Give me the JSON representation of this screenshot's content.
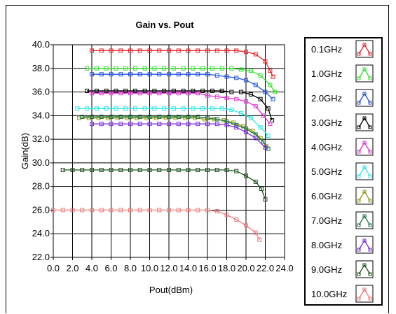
{
  "chart_data": {
    "type": "line",
    "title": "Gain vs. Pout",
    "xlabel": "Pout(dBm)",
    "ylabel": "Gain(dB)",
    "xlim": [
      0.0,
      24.0
    ],
    "ylim": [
      22.0,
      40.0
    ],
    "x_ticks": [
      "0.0",
      "2.0",
      "4.0",
      "6.0",
      "8.0",
      "10.0",
      "12.0",
      "14.0",
      "16.0",
      "18.0",
      "20.0",
      "22.0",
      "24.0"
    ],
    "y_ticks": [
      "22.0",
      "24.0",
      "26.0",
      "28.0",
      "30.0",
      "32.0",
      "34.0",
      "36.0",
      "38.0",
      "40.0"
    ],
    "grid": true,
    "legend_position": "right",
    "series": [
      {
        "name": "0.1GHz",
        "color": "#e8232a",
        "points": [
          [
            4.0,
            39.5
          ],
          [
            5.0,
            39.5
          ],
          [
            6.0,
            39.5
          ],
          [
            7.0,
            39.5
          ],
          [
            8.0,
            39.5
          ],
          [
            9.0,
            39.5
          ],
          [
            10.0,
            39.5
          ],
          [
            11.0,
            39.5
          ],
          [
            12.0,
            39.5
          ],
          [
            13.0,
            39.5
          ],
          [
            14.0,
            39.5
          ],
          [
            15.0,
            39.5
          ],
          [
            16.0,
            39.5
          ],
          [
            17.0,
            39.5
          ],
          [
            18.0,
            39.5
          ],
          [
            19.0,
            39.5
          ],
          [
            20.0,
            39.4
          ],
          [
            21.0,
            39.2
          ],
          [
            22.0,
            38.6
          ],
          [
            22.5,
            37.8
          ],
          [
            22.8,
            37.3
          ]
        ]
      },
      {
        "name": "1.0GHz",
        "color": "#35e02e",
        "points": [
          [
            3.5,
            38.0
          ],
          [
            4.5,
            38.0
          ],
          [
            5.5,
            38.0
          ],
          [
            6.5,
            38.0
          ],
          [
            7.5,
            38.0
          ],
          [
            8.5,
            38.0
          ],
          [
            9.5,
            38.0
          ],
          [
            10.5,
            38.0
          ],
          [
            11.5,
            38.0
          ],
          [
            12.5,
            38.0
          ],
          [
            13.5,
            38.0
          ],
          [
            14.5,
            38.0
          ],
          [
            15.5,
            38.0
          ],
          [
            16.5,
            38.0
          ],
          [
            17.5,
            38.0
          ],
          [
            18.5,
            38.0
          ],
          [
            19.5,
            37.9
          ],
          [
            20.5,
            37.8
          ],
          [
            21.5,
            37.4
          ],
          [
            22.5,
            36.6
          ],
          [
            23.0,
            36.0
          ]
        ]
      },
      {
        "name": "2.0GHz",
        "color": "#2352e0",
        "points": [
          [
            4.0,
            37.5
          ],
          [
            5.0,
            37.5
          ],
          [
            6.0,
            37.5
          ],
          [
            7.0,
            37.5
          ],
          [
            8.0,
            37.5
          ],
          [
            9.0,
            37.5
          ],
          [
            10.0,
            37.5
          ],
          [
            11.0,
            37.5
          ],
          [
            12.0,
            37.5
          ],
          [
            13.0,
            37.5
          ],
          [
            14.0,
            37.5
          ],
          [
            15.0,
            37.5
          ],
          [
            16.0,
            37.5
          ],
          [
            17.0,
            37.4
          ],
          [
            18.0,
            37.3
          ],
          [
            19.0,
            37.2
          ],
          [
            20.0,
            37.0
          ],
          [
            21.0,
            36.6
          ],
          [
            22.0,
            36.0
          ],
          [
            22.8,
            35.4
          ]
        ]
      },
      {
        "name": "3.0GHz",
        "color": "#000000",
        "points": [
          [
            3.5,
            36.1
          ],
          [
            4.5,
            36.1
          ],
          [
            5.5,
            36.1
          ],
          [
            6.5,
            36.1
          ],
          [
            7.5,
            36.1
          ],
          [
            8.5,
            36.1
          ],
          [
            9.5,
            36.1
          ],
          [
            10.5,
            36.1
          ],
          [
            11.5,
            36.1
          ],
          [
            12.5,
            36.1
          ],
          [
            13.5,
            36.1
          ],
          [
            14.5,
            36.1
          ],
          [
            15.5,
            36.1
          ],
          [
            16.5,
            36.1
          ],
          [
            17.5,
            36.1
          ],
          [
            18.5,
            36.0
          ],
          [
            19.5,
            36.0
          ],
          [
            20.5,
            35.8
          ],
          [
            21.5,
            35.4
          ],
          [
            22.3,
            34.6
          ],
          [
            22.7,
            33.6
          ]
        ]
      },
      {
        "name": "4.0GHz",
        "color": "#e035d8",
        "points": [
          [
            4.0,
            35.9
          ],
          [
            5.0,
            35.9
          ],
          [
            6.0,
            35.9
          ],
          [
            7.0,
            35.9
          ],
          [
            8.0,
            35.9
          ],
          [
            9.0,
            35.9
          ],
          [
            10.0,
            35.9
          ],
          [
            11.0,
            35.9
          ],
          [
            12.0,
            35.9
          ],
          [
            13.0,
            35.9
          ],
          [
            14.0,
            35.9
          ],
          [
            15.0,
            35.9
          ],
          [
            16.0,
            35.7
          ],
          [
            17.0,
            35.6
          ],
          [
            18.0,
            35.5
          ],
          [
            19.0,
            35.4
          ],
          [
            20.0,
            35.2
          ],
          [
            21.0,
            34.8
          ],
          [
            21.8,
            34.0
          ],
          [
            22.5,
            33.3
          ]
        ]
      },
      {
        "name": "5.0GHz",
        "color": "#2ee6e6",
        "points": [
          [
            2.5,
            34.6
          ],
          [
            3.5,
            34.6
          ],
          [
            4.5,
            34.6
          ],
          [
            5.5,
            34.6
          ],
          [
            6.5,
            34.6
          ],
          [
            7.5,
            34.6
          ],
          [
            8.5,
            34.6
          ],
          [
            9.5,
            34.6
          ],
          [
            10.5,
            34.6
          ],
          [
            11.5,
            34.6
          ],
          [
            12.5,
            34.6
          ],
          [
            13.5,
            34.6
          ],
          [
            14.5,
            34.6
          ],
          [
            15.5,
            34.6
          ],
          [
            16.5,
            34.6
          ],
          [
            17.5,
            34.6
          ],
          [
            18.5,
            34.5
          ],
          [
            19.5,
            34.2
          ],
          [
            20.5,
            33.8
          ],
          [
            21.5,
            33.0
          ],
          [
            22.3,
            32.3
          ]
        ]
      },
      {
        "name": "6.0GHz",
        "color": "#9a9a1c",
        "points": [
          [
            2.7,
            33.8
          ],
          [
            3.7,
            33.8
          ],
          [
            4.7,
            33.8
          ],
          [
            5.7,
            33.8
          ],
          [
            6.7,
            33.8
          ],
          [
            7.7,
            33.8
          ],
          [
            8.7,
            33.8
          ],
          [
            9.7,
            33.8
          ],
          [
            10.7,
            33.8
          ],
          [
            11.7,
            33.8
          ],
          [
            12.7,
            33.8
          ],
          [
            13.7,
            33.8
          ],
          [
            14.7,
            33.8
          ],
          [
            15.7,
            33.7
          ],
          [
            16.7,
            33.7
          ],
          [
            17.7,
            33.6
          ],
          [
            18.7,
            33.4
          ],
          [
            19.7,
            33.1
          ],
          [
            20.7,
            32.7
          ],
          [
            21.5,
            32.1
          ],
          [
            22.1,
            31.4
          ]
        ]
      },
      {
        "name": "7.0GHz",
        "color": "#1c7a4e",
        "points": [
          [
            3.0,
            33.9
          ],
          [
            4.0,
            33.9
          ],
          [
            5.0,
            33.9
          ],
          [
            6.0,
            33.9
          ],
          [
            7.0,
            33.9
          ],
          [
            8.0,
            33.9
          ],
          [
            9.0,
            33.9
          ],
          [
            10.0,
            33.9
          ],
          [
            11.0,
            33.9
          ],
          [
            12.0,
            33.9
          ],
          [
            13.0,
            33.9
          ],
          [
            14.0,
            33.9
          ],
          [
            15.0,
            33.9
          ],
          [
            16.0,
            33.8
          ],
          [
            17.0,
            33.7
          ],
          [
            18.0,
            33.5
          ],
          [
            19.0,
            33.2
          ],
          [
            20.0,
            32.9
          ],
          [
            21.0,
            32.4
          ],
          [
            21.8,
            31.8
          ],
          [
            22.3,
            31.2
          ]
        ]
      },
      {
        "name": "8.0GHz",
        "color": "#7a2ee0",
        "points": [
          [
            4.0,
            33.3
          ],
          [
            5.0,
            33.3
          ],
          [
            6.0,
            33.3
          ],
          [
            7.0,
            33.3
          ],
          [
            8.0,
            33.3
          ],
          [
            9.0,
            33.3
          ],
          [
            10.0,
            33.3
          ],
          [
            11.0,
            33.3
          ],
          [
            12.0,
            33.3
          ],
          [
            13.0,
            33.3
          ],
          [
            14.0,
            33.3
          ],
          [
            15.0,
            33.3
          ],
          [
            16.0,
            33.3
          ],
          [
            17.0,
            33.3
          ],
          [
            18.0,
            33.2
          ],
          [
            19.0,
            33.0
          ],
          [
            20.0,
            32.6
          ],
          [
            21.0,
            32.1
          ],
          [
            22.0,
            31.3
          ]
        ]
      },
      {
        "name": "9.0GHz",
        "color": "#1f4f1f",
        "points": [
          [
            1.0,
            29.4
          ],
          [
            2.0,
            29.4
          ],
          [
            3.0,
            29.4
          ],
          [
            4.0,
            29.4
          ],
          [
            5.0,
            29.4
          ],
          [
            6.0,
            29.4
          ],
          [
            7.0,
            29.4
          ],
          [
            8.0,
            29.4
          ],
          [
            9.0,
            29.4
          ],
          [
            10.0,
            29.4
          ],
          [
            11.0,
            29.4
          ],
          [
            12.0,
            29.4
          ],
          [
            13.0,
            29.4
          ],
          [
            14.0,
            29.4
          ],
          [
            15.0,
            29.4
          ],
          [
            16.0,
            29.4
          ],
          [
            17.0,
            29.4
          ],
          [
            18.0,
            29.4
          ],
          [
            19.0,
            29.3
          ],
          [
            20.0,
            28.9
          ],
          [
            21.0,
            28.4
          ],
          [
            21.6,
            27.8
          ],
          [
            22.0,
            26.9
          ]
        ]
      },
      {
        "name": "10.0GHz",
        "color": "#f07a7a",
        "points": [
          [
            0.0,
            26.0
          ],
          [
            1.0,
            26.0
          ],
          [
            2.0,
            26.0
          ],
          [
            3.0,
            26.0
          ],
          [
            4.0,
            26.0
          ],
          [
            5.0,
            26.0
          ],
          [
            6.0,
            26.0
          ],
          [
            7.0,
            26.0
          ],
          [
            8.0,
            26.0
          ],
          [
            9.0,
            26.0
          ],
          [
            10.0,
            26.0
          ],
          [
            11.0,
            26.0
          ],
          [
            12.0,
            26.0
          ],
          [
            13.0,
            26.0
          ],
          [
            14.0,
            26.0
          ],
          [
            15.0,
            26.0
          ],
          [
            16.0,
            26.0
          ],
          [
            17.0,
            25.9
          ],
          [
            18.0,
            25.6
          ],
          [
            19.0,
            25.2
          ],
          [
            20.0,
            24.7
          ],
          [
            21.0,
            24.1
          ],
          [
            21.4,
            23.5
          ]
        ]
      }
    ]
  }
}
